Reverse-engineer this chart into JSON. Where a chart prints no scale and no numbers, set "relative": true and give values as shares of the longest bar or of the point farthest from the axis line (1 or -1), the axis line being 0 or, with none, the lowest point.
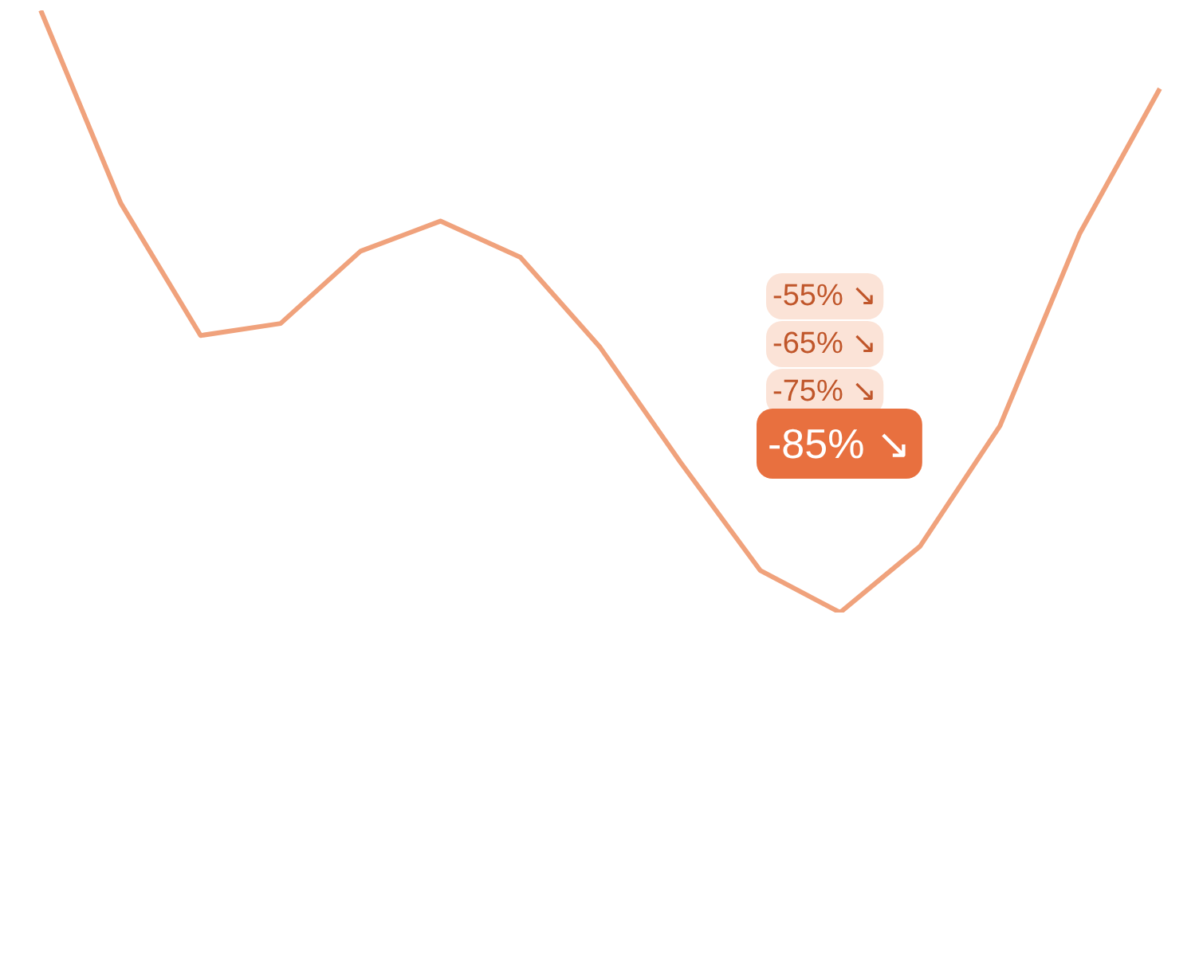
{
  "chart_data": {
    "type": "line",
    "relative": true,
    "categories": [
      null,
      null,
      null,
      null,
      null,
      null,
      null,
      null,
      null,
      null,
      null,
      null,
      null,
      null,
      null
    ],
    "series": [
      {
        "color": "#f0a27c",
        "values": [
          1.0,
          0.68,
          0.46,
          0.48,
          0.6,
          0.65,
          0.59,
          0.44,
          0.25,
          0.07,
          0.0,
          0.11,
          0.31,
          0.63,
          0.87
        ]
      }
    ],
    "annotations": [
      "-55% ↘",
      "-65% ↘",
      "-75% ↘",
      "-85% ↘"
    ]
  }
}
